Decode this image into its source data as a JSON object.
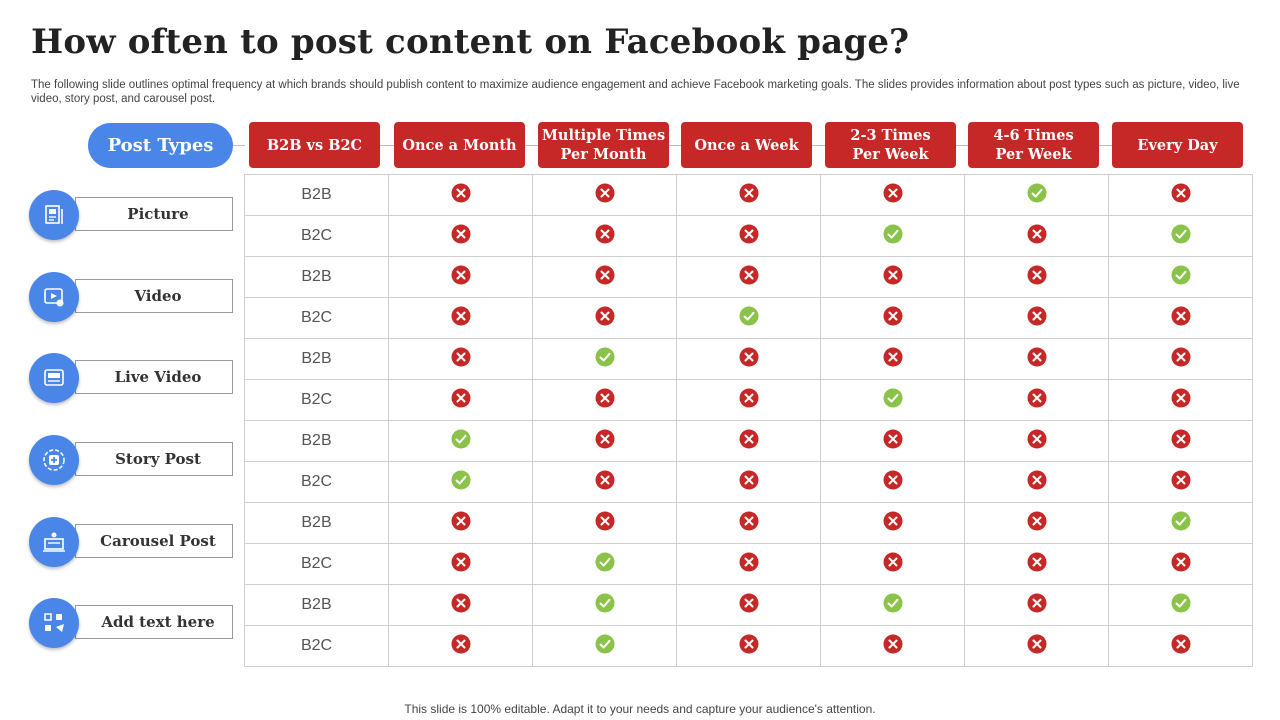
{
  "title": "How often to post content on Facebook page?",
  "subtitle": "The following slide outlines optimal frequency at which brands should publish content to maximize audience engagement and achieve Facebook marketing goals. The slides provides information about post types such as picture, video, live video, story post, and carousel post.",
  "post_types_header": "Post Types",
  "columns": [
    "B2B vs B2C",
    "Once a Month",
    "Multiple Times\nPer Month",
    "Once a Week",
    "2-3 Times\nPer Week",
    "4-6 Times\nPer Week",
    "Every Day"
  ],
  "post_types": [
    {
      "label": "Picture",
      "icon": "picture-icon"
    },
    {
      "label": "Video",
      "icon": "video-icon"
    },
    {
      "label": "Live Video",
      "icon": "live-video-icon"
    },
    {
      "label": "Story Post",
      "icon": "story-post-icon"
    },
    {
      "label": "Carousel Post",
      "icon": "carousel-post-icon"
    },
    {
      "label": "Add text here",
      "icon": "add-text-icon"
    }
  ],
  "rows": [
    {
      "segment": "B2B",
      "values": [
        "no",
        "no",
        "no",
        "no",
        "yes",
        "no"
      ]
    },
    {
      "segment": "B2C",
      "values": [
        "no",
        "no",
        "no",
        "yes",
        "no",
        "yes"
      ]
    },
    {
      "segment": "B2B",
      "values": [
        "no",
        "no",
        "no",
        "no",
        "no",
        "yes"
      ]
    },
    {
      "segment": "B2C",
      "values": [
        "no",
        "no",
        "yes",
        "no",
        "no",
        "no"
      ]
    },
    {
      "segment": "B2B",
      "values": [
        "no",
        "yes",
        "no",
        "no",
        "no",
        "no"
      ]
    },
    {
      "segment": "B2C",
      "values": [
        "no",
        "no",
        "no",
        "yes",
        "no",
        "no"
      ]
    },
    {
      "segment": "B2B",
      "values": [
        "yes",
        "no",
        "no",
        "no",
        "no",
        "no"
      ]
    },
    {
      "segment": "B2C",
      "values": [
        "yes",
        "no",
        "no",
        "no",
        "no",
        "no"
      ]
    },
    {
      "segment": "B2B",
      "values": [
        "no",
        "no",
        "no",
        "no",
        "no",
        "yes"
      ]
    },
    {
      "segment": "B2C",
      "values": [
        "no",
        "yes",
        "no",
        "no",
        "no",
        "no"
      ]
    },
    {
      "segment": "B2B",
      "values": [
        "no",
        "yes",
        "no",
        "yes",
        "no",
        "yes"
      ]
    },
    {
      "segment": "B2C",
      "values": [
        "no",
        "yes",
        "no",
        "no",
        "no",
        "no"
      ]
    }
  ],
  "footer": "This slide is 100% editable. Adapt it to your needs and capture your audience's attention.",
  "colors": {
    "accent_red": "#c62828",
    "accent_blue": "#4a86e8",
    "check_green": "#8bc34a",
    "cross_red": "#c62828"
  }
}
